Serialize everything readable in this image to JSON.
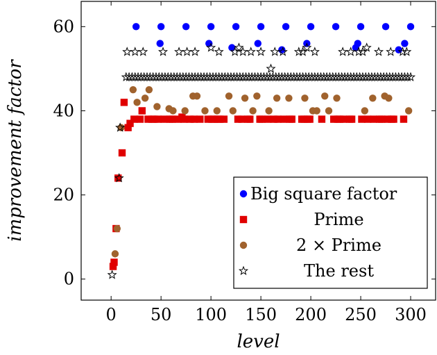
{
  "chart_data": {
    "type": "scatter",
    "title": "",
    "xlabel": "level",
    "ylabel": "improvement factor",
    "xlim": [
      -30,
      325
    ],
    "ylim": [
      -5,
      66
    ],
    "xticks": [
      0,
      50,
      100,
      150,
      200,
      250,
      300
    ],
    "yticks": [
      0,
      20,
      40,
      60
    ],
    "grid": false,
    "legend_position": "bottom-right",
    "series": [
      {
        "name": "Big square factor",
        "color": "#0000ff",
        "marker": "circle",
        "points": [
          [
            25,
            60
          ],
          [
            50,
            60
          ],
          [
            75,
            60
          ],
          [
            100,
            60
          ],
          [
            125,
            60
          ],
          [
            150,
            60
          ],
          [
            175,
            60
          ],
          [
            200,
            60
          ],
          [
            225,
            60
          ],
          [
            250,
            60
          ],
          [
            275,
            60
          ],
          [
            300,
            60
          ],
          [
            49,
            56
          ],
          [
            98,
            56
          ],
          [
            121,
            55
          ],
          [
            147,
            56
          ],
          [
            171,
            54.5
          ],
          [
            196,
            56
          ],
          [
            245,
            55
          ],
          [
            247,
            56
          ],
          [
            288,
            54.5
          ],
          [
            294,
            56
          ]
        ]
      },
      {
        "name": "Prime",
        "color": "#e00000",
        "marker": "square",
        "points": [
          [
            2,
            3
          ],
          [
            3,
            4
          ],
          [
            5,
            12
          ],
          [
            7,
            24
          ],
          [
            11,
            30
          ],
          [
            13,
            42
          ],
          [
            17,
            36
          ],
          [
            19,
            37
          ],
          [
            23,
            38
          ],
          [
            29,
            38
          ],
          [
            31,
            40
          ],
          [
            37,
            38
          ],
          [
            41,
            38
          ],
          [
            43,
            38
          ],
          [
            47,
            38
          ],
          [
            53,
            38
          ],
          [
            59,
            38
          ],
          [
            61,
            38
          ],
          [
            67,
            38
          ],
          [
            71,
            38.5
          ],
          [
            73,
            38
          ],
          [
            79,
            38
          ],
          [
            83,
            38
          ],
          [
            89,
            38
          ],
          [
            97,
            38
          ],
          [
            101,
            38
          ],
          [
            103,
            38
          ],
          [
            107,
            38
          ],
          [
            109,
            38
          ],
          [
            113,
            38
          ],
          [
            127,
            38
          ],
          [
            131,
            38
          ],
          [
            137,
            38
          ],
          [
            139,
            38
          ],
          [
            149,
            38
          ],
          [
            151,
            38
          ],
          [
            157,
            38
          ],
          [
            163,
            38
          ],
          [
            167,
            38
          ],
          [
            173,
            38
          ],
          [
            179,
            38
          ],
          [
            181,
            38
          ],
          [
            191,
            38
          ],
          [
            193,
            38
          ],
          [
            197,
            38
          ],
          [
            199,
            38
          ],
          [
            211,
            38
          ],
          [
            223,
            38
          ],
          [
            227,
            38
          ],
          [
            229,
            38
          ],
          [
            233,
            38
          ],
          [
            239,
            38
          ],
          [
            241,
            38
          ],
          [
            251,
            38
          ],
          [
            257,
            38
          ],
          [
            263,
            38
          ],
          [
            269,
            38
          ],
          [
            271,
            38
          ],
          [
            277,
            38
          ],
          [
            281,
            38
          ],
          [
            283,
            38
          ],
          [
            293,
            38
          ]
        ]
      },
      {
        "name": "2 × Prime",
        "color": "#a0622d",
        "marker": "circle",
        "points": [
          [
            4,
            6
          ],
          [
            6,
            12
          ],
          [
            10,
            36
          ],
          [
            22,
            45
          ],
          [
            26,
            42
          ],
          [
            34,
            43
          ],
          [
            38,
            45
          ],
          [
            46,
            41
          ],
          [
            58,
            40.5
          ],
          [
            62,
            40
          ],
          [
            74,
            40
          ],
          [
            82,
            43.5
          ],
          [
            86,
            43.5
          ],
          [
            94,
            40
          ],
          [
            106,
            40
          ],
          [
            118,
            43.5
          ],
          [
            122,
            40
          ],
          [
            134,
            43
          ],
          [
            142,
            40
          ],
          [
            146,
            43.5
          ],
          [
            158,
            40
          ],
          [
            166,
            43
          ],
          [
            178,
            43
          ],
          [
            194,
            43
          ],
          [
            202,
            40
          ],
          [
            206,
            40
          ],
          [
            214,
            43.5
          ],
          [
            218,
            40
          ],
          [
            226,
            43
          ],
          [
            254,
            40
          ],
          [
            262,
            43
          ],
          [
            274,
            43.5
          ],
          [
            278,
            43
          ],
          [
            298,
            40
          ]
        ]
      },
      {
        "name": "The rest",
        "color": "#000000",
        "marker": "star",
        "points": [
          [
            1,
            1
          ],
          [
            8,
            24
          ],
          [
            9,
            36
          ],
          [
            15,
            48
          ],
          [
            18,
            48
          ],
          [
            21,
            48
          ],
          [
            24,
            48
          ],
          [
            27,
            48
          ],
          [
            30,
            48
          ],
          [
            33,
            48
          ],
          [
            36,
            48
          ],
          [
            39,
            48
          ],
          [
            42,
            48
          ],
          [
            45,
            48
          ],
          [
            48,
            48
          ],
          [
            51,
            48
          ],
          [
            54,
            48
          ],
          [
            57,
            48
          ],
          [
            60,
            48
          ],
          [
            63,
            48
          ],
          [
            66,
            48
          ],
          [
            69,
            48
          ],
          [
            72,
            48
          ],
          [
            75,
            48
          ],
          [
            78,
            48
          ],
          [
            81,
            48
          ],
          [
            84,
            48
          ],
          [
            87,
            48
          ],
          [
            90,
            48
          ],
          [
            93,
            48
          ],
          [
            96,
            48
          ],
          [
            99,
            48
          ],
          [
            102,
            48
          ],
          [
            105,
            48
          ],
          [
            108,
            48
          ],
          [
            111,
            48
          ],
          [
            114,
            48
          ],
          [
            117,
            48
          ],
          [
            120,
            48
          ],
          [
            123,
            48
          ],
          [
            126,
            48
          ],
          [
            129,
            48
          ],
          [
            132,
            48
          ],
          [
            135,
            48
          ],
          [
            138,
            48
          ],
          [
            141,
            48
          ],
          [
            144,
            48
          ],
          [
            147,
            48
          ],
          [
            150,
            48
          ],
          [
            153,
            48
          ],
          [
            156,
            48
          ],
          [
            159,
            48
          ],
          [
            162,
            48
          ],
          [
            165,
            48
          ],
          [
            168,
            48
          ],
          [
            171,
            48
          ],
          [
            174,
            48
          ],
          [
            177,
            48
          ],
          [
            180,
            48
          ],
          [
            183,
            48
          ],
          [
            186,
            48
          ],
          [
            189,
            48
          ],
          [
            192,
            48
          ],
          [
            195,
            48
          ],
          [
            198,
            48
          ],
          [
            201,
            48
          ],
          [
            204,
            48
          ],
          [
            207,
            48
          ],
          [
            210,
            48
          ],
          [
            213,
            48
          ],
          [
            216,
            48
          ],
          [
            219,
            48
          ],
          [
            222,
            48
          ],
          [
            225,
            48
          ],
          [
            228,
            48
          ],
          [
            231,
            48
          ],
          [
            234,
            48
          ],
          [
            237,
            48
          ],
          [
            240,
            48
          ],
          [
            243,
            48
          ],
          [
            246,
            48
          ],
          [
            249,
            48
          ],
          [
            252,
            48
          ],
          [
            255,
            48
          ],
          [
            258,
            48
          ],
          [
            261,
            48
          ],
          [
            264,
            48
          ],
          [
            267,
            48
          ],
          [
            270,
            48
          ],
          [
            273,
            48
          ],
          [
            276,
            48
          ],
          [
            279,
            48
          ],
          [
            282,
            48
          ],
          [
            285,
            48
          ],
          [
            288,
            48
          ],
          [
            291,
            48
          ],
          [
            294,
            48
          ],
          [
            297,
            48
          ],
          [
            300,
            48
          ],
          [
            160,
            50
          ],
          [
            16,
            54
          ],
          [
            24,
            54
          ],
          [
            32,
            54
          ],
          [
            52,
            54
          ],
          [
            68,
            54
          ],
          [
            76,
            54
          ],
          [
            84,
            54
          ],
          [
            100,
            55
          ],
          [
            108,
            54
          ],
          [
            124,
            54
          ],
          [
            128,
            55
          ],
          [
            132,
            54
          ],
          [
            140,
            54
          ],
          [
            150,
            54
          ],
          [
            164,
            54
          ],
          [
            172,
            54
          ],
          [
            188,
            54
          ],
          [
            192,
            54
          ],
          [
            196,
            55
          ],
          [
            204,
            54
          ],
          [
            232,
            54
          ],
          [
            240,
            54
          ],
          [
            248,
            54
          ],
          [
            252,
            54
          ],
          [
            256,
            55
          ],
          [
            268,
            54
          ],
          [
            280,
            54
          ],
          [
            292,
            54
          ],
          [
            296,
            54
          ]
        ]
      }
    ]
  }
}
